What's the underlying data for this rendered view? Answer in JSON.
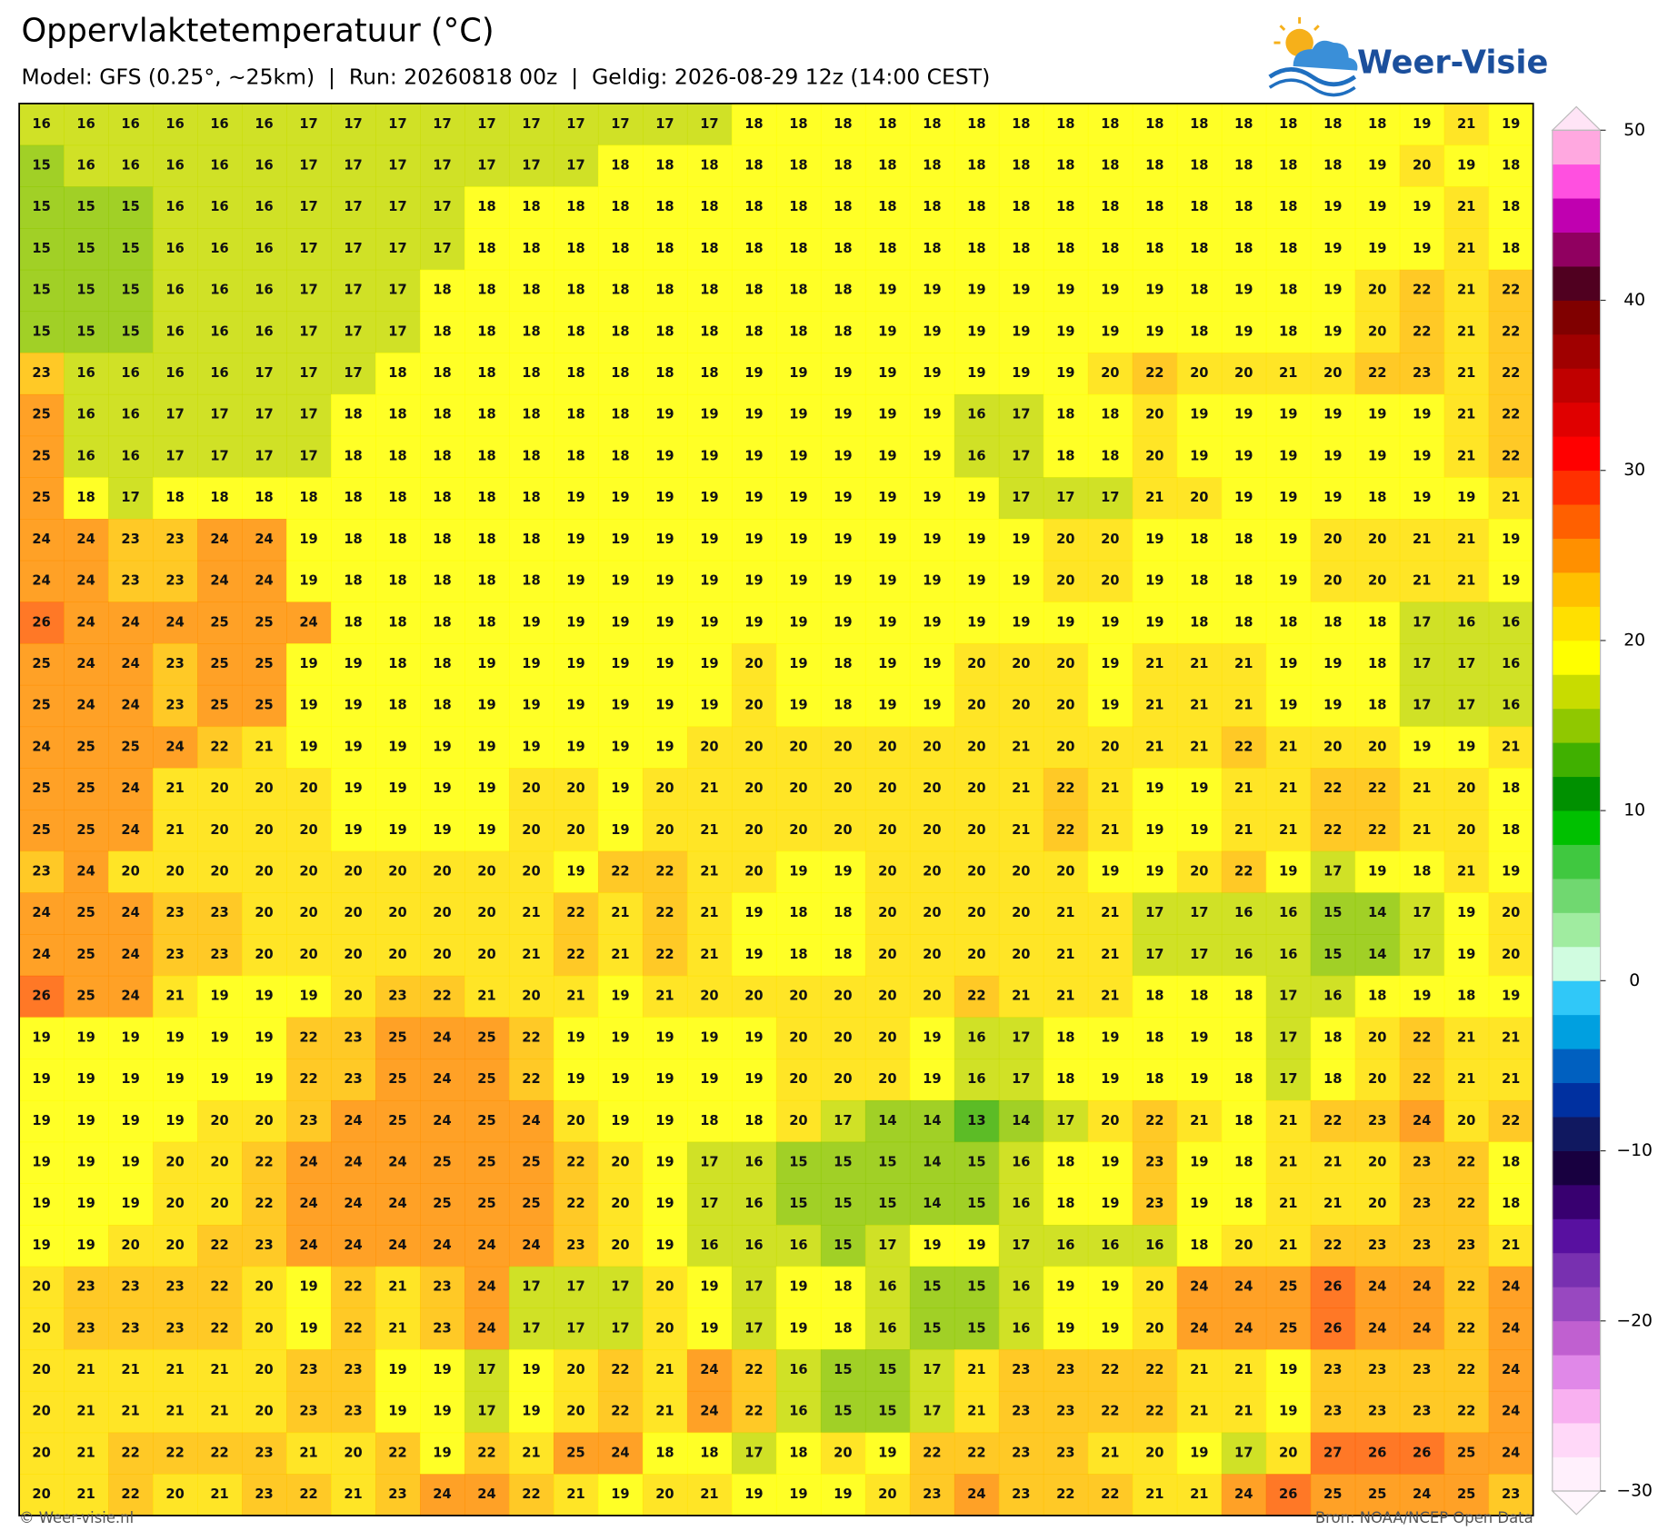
{
  "header": {
    "title": "Oppervlaktetemperatuur (°C)",
    "subtitle": "Model: GFS (0.25°, ~25km)  |  Run: 20260818 00z  |  Geldig: 2026-08-29 12z (14:00 CEST)",
    "logo": "Weer-Visie"
  },
  "chart_data": {
    "type": "heatmap",
    "values": [
      [
        16,
        16,
        16,
        16,
        16,
        16,
        17,
        17,
        17,
        17,
        17,
        17,
        17,
        17,
        17,
        17,
        18,
        18,
        18,
        18,
        18,
        18,
        18,
        18,
        18,
        18,
        18,
        18,
        18,
        18,
        18,
        19,
        21,
        19
      ],
      [
        15,
        16,
        16,
        16,
        16,
        16,
        17,
        17,
        17,
        17,
        17,
        17,
        17,
        18,
        18,
        18,
        18,
        18,
        18,
        18,
        18,
        18,
        18,
        18,
        18,
        18,
        18,
        18,
        18,
        18,
        19,
        20,
        19,
        18
      ],
      [
        15,
        15,
        15,
        16,
        16,
        16,
        17,
        17,
        17,
        17,
        18,
        18,
        18,
        18,
        18,
        18,
        18,
        18,
        18,
        18,
        18,
        18,
        18,
        18,
        18,
        18,
        18,
        18,
        18,
        19,
        19,
        19,
        21,
        18
      ],
      [
        15,
        15,
        15,
        16,
        16,
        16,
        17,
        17,
        17,
        17,
        18,
        18,
        18,
        18,
        18,
        18,
        18,
        18,
        18,
        18,
        18,
        18,
        18,
        18,
        18,
        18,
        18,
        18,
        18,
        19,
        19,
        19,
        21,
        18
      ],
      [
        15,
        15,
        15,
        16,
        16,
        16,
        17,
        17,
        17,
        18,
        18,
        18,
        18,
        18,
        18,
        18,
        18,
        18,
        18,
        19,
        19,
        19,
        19,
        19,
        19,
        19,
        18,
        19,
        18,
        19,
        20,
        22,
        21,
        22
      ],
      [
        15,
        15,
        15,
        16,
        16,
        16,
        17,
        17,
        17,
        18,
        18,
        18,
        18,
        18,
        18,
        18,
        18,
        18,
        18,
        19,
        19,
        19,
        19,
        19,
        19,
        19,
        18,
        19,
        18,
        19,
        20,
        22,
        21,
        22
      ],
      [
        23,
        16,
        16,
        16,
        16,
        17,
        17,
        17,
        18,
        18,
        18,
        18,
        18,
        18,
        18,
        18,
        19,
        19,
        19,
        19,
        19,
        19,
        19,
        19,
        20,
        22,
        20,
        20,
        21,
        20,
        22,
        23,
        21,
        22
      ],
      [
        25,
        16,
        16,
        17,
        17,
        17,
        17,
        18,
        18,
        18,
        18,
        18,
        18,
        18,
        19,
        19,
        19,
        19,
        19,
        19,
        19,
        16,
        17,
        18,
        18,
        20,
        19,
        19,
        19,
        19,
        19,
        19,
        21,
        22
      ],
      [
        25,
        16,
        16,
        17,
        17,
        17,
        17,
        18,
        18,
        18,
        18,
        18,
        18,
        18,
        19,
        19,
        19,
        19,
        19,
        19,
        19,
        16,
        17,
        18,
        18,
        20,
        19,
        19,
        19,
        19,
        19,
        19,
        21,
        22
      ],
      [
        25,
        18,
        17,
        18,
        18,
        18,
        18,
        18,
        18,
        18,
        18,
        18,
        19,
        19,
        19,
        19,
        19,
        19,
        19,
        19,
        19,
        19,
        17,
        17,
        17,
        21,
        20,
        19,
        19,
        19,
        18,
        19,
        19,
        21
      ],
      [
        24,
        24,
        23,
        23,
        24,
        24,
        19,
        18,
        18,
        18,
        18,
        18,
        19,
        19,
        19,
        19,
        19,
        19,
        19,
        19,
        19,
        19,
        19,
        20,
        20,
        19,
        18,
        18,
        19,
        20,
        20,
        21,
        21,
        19
      ],
      [
        24,
        24,
        23,
        23,
        24,
        24,
        19,
        18,
        18,
        18,
        18,
        18,
        19,
        19,
        19,
        19,
        19,
        19,
        19,
        19,
        19,
        19,
        19,
        20,
        20,
        19,
        18,
        18,
        19,
        20,
        20,
        21,
        21,
        19
      ],
      [
        26,
        24,
        24,
        24,
        25,
        25,
        24,
        18,
        18,
        18,
        18,
        19,
        19,
        19,
        19,
        19,
        19,
        19,
        19,
        19,
        19,
        19,
        19,
        19,
        19,
        19,
        18,
        18,
        18,
        18,
        18,
        17,
        16,
        16
      ],
      [
        25,
        24,
        24,
        23,
        25,
        25,
        19,
        19,
        18,
        18,
        19,
        19,
        19,
        19,
        19,
        19,
        20,
        19,
        18,
        19,
        19,
        20,
        20,
        20,
        19,
        21,
        21,
        21,
        19,
        19,
        18,
        17,
        17,
        16
      ],
      [
        25,
        24,
        24,
        23,
        25,
        25,
        19,
        19,
        18,
        18,
        19,
        19,
        19,
        19,
        19,
        19,
        20,
        19,
        18,
        19,
        19,
        20,
        20,
        20,
        19,
        21,
        21,
        21,
        19,
        19,
        18,
        17,
        17,
        16
      ],
      [
        24,
        25,
        25,
        24,
        22,
        21,
        19,
        19,
        19,
        19,
        19,
        19,
        19,
        19,
        19,
        20,
        20,
        20,
        20,
        20,
        20,
        20,
        21,
        20,
        20,
        21,
        21,
        22,
        21,
        20,
        20,
        19,
        19,
        21
      ],
      [
        25,
        25,
        24,
        21,
        20,
        20,
        20,
        19,
        19,
        19,
        19,
        20,
        20,
        19,
        20,
        21,
        20,
        20,
        20,
        20,
        20,
        20,
        21,
        22,
        21,
        19,
        19,
        21,
        21,
        22,
        22,
        21,
        20,
        18
      ],
      [
        25,
        25,
        24,
        21,
        20,
        20,
        20,
        19,
        19,
        19,
        19,
        20,
        20,
        19,
        20,
        21,
        20,
        20,
        20,
        20,
        20,
        20,
        21,
        22,
        21,
        19,
        19,
        21,
        21,
        22,
        22,
        21,
        20,
        18
      ],
      [
        23,
        24,
        20,
        20,
        20,
        20,
        20,
        20,
        20,
        20,
        20,
        20,
        19,
        22,
        22,
        21,
        20,
        19,
        19,
        20,
        20,
        20,
        20,
        20,
        19,
        19,
        20,
        22,
        19,
        17,
        19,
        18,
        21,
        19
      ],
      [
        24,
        25,
        24,
        23,
        23,
        20,
        20,
        20,
        20,
        20,
        20,
        21,
        22,
        21,
        22,
        21,
        19,
        18,
        18,
        20,
        20,
        20,
        20,
        21,
        21,
        17,
        17,
        16,
        16,
        15,
        14,
        17,
        19,
        20
      ],
      [
        24,
        25,
        24,
        23,
        23,
        20,
        20,
        20,
        20,
        20,
        20,
        21,
        22,
        21,
        22,
        21,
        19,
        18,
        18,
        20,
        20,
        20,
        20,
        21,
        21,
        17,
        17,
        16,
        16,
        15,
        14,
        17,
        19,
        20
      ],
      [
        26,
        25,
        24,
        21,
        19,
        19,
        19,
        20,
        23,
        22,
        21,
        20,
        21,
        19,
        21,
        20,
        20,
        20,
        20,
        20,
        20,
        22,
        21,
        21,
        21,
        18,
        18,
        18,
        17,
        16,
        18,
        19,
        18,
        19
      ],
      [
        19,
        19,
        19,
        19,
        19,
        19,
        22,
        23,
        25,
        24,
        25,
        22,
        19,
        19,
        19,
        19,
        19,
        20,
        20,
        20,
        19,
        16,
        17,
        18,
        19,
        18,
        19,
        18,
        17,
        18,
        20,
        22,
        21,
        21
      ],
      [
        19,
        19,
        19,
        19,
        19,
        19,
        22,
        23,
        25,
        24,
        25,
        22,
        19,
        19,
        19,
        19,
        19,
        20,
        20,
        20,
        19,
        16,
        17,
        18,
        19,
        18,
        19,
        18,
        17,
        18,
        20,
        22,
        21,
        21
      ],
      [
        19,
        19,
        19,
        19,
        20,
        20,
        23,
        24,
        25,
        24,
        25,
        24,
        20,
        19,
        19,
        18,
        18,
        20,
        17,
        14,
        14,
        13,
        14,
        17,
        20,
        22,
        21,
        18,
        21,
        22,
        23,
        24,
        20,
        22
      ],
      [
        19,
        19,
        19,
        20,
        20,
        22,
        24,
        24,
        24,
        25,
        25,
        25,
        22,
        20,
        19,
        17,
        16,
        15,
        15,
        15,
        14,
        15,
        16,
        18,
        19,
        23,
        19,
        18,
        21,
        21,
        20,
        23,
        22,
        18
      ],
      [
        19,
        19,
        19,
        20,
        20,
        22,
        24,
        24,
        24,
        25,
        25,
        25,
        22,
        20,
        19,
        17,
        16,
        15,
        15,
        15,
        14,
        15,
        16,
        18,
        19,
        23,
        19,
        18,
        21,
        21,
        20,
        23,
        22,
        18
      ],
      [
        19,
        19,
        20,
        20,
        22,
        23,
        24,
        24,
        24,
        24,
        24,
        24,
        23,
        20,
        19,
        16,
        16,
        16,
        15,
        17,
        19,
        19,
        17,
        16,
        16,
        16,
        18,
        20,
        21,
        22,
        23,
        23,
        23,
        21
      ],
      [
        20,
        23,
        23,
        23,
        22,
        20,
        19,
        22,
        21,
        23,
        24,
        17,
        17,
        17,
        20,
        19,
        17,
        19,
        18,
        16,
        15,
        15,
        16,
        19,
        19,
        20,
        24,
        24,
        25,
        26,
        24,
        24,
        22,
        24
      ],
      [
        20,
        23,
        23,
        23,
        22,
        20,
        19,
        22,
        21,
        23,
        24,
        17,
        17,
        17,
        20,
        19,
        17,
        19,
        18,
        16,
        15,
        15,
        16,
        19,
        19,
        20,
        24,
        24,
        25,
        26,
        24,
        24,
        22,
        24
      ],
      [
        20,
        21,
        21,
        21,
        21,
        20,
        23,
        23,
        19,
        19,
        17,
        19,
        20,
        22,
        21,
        24,
        22,
        16,
        15,
        15,
        17,
        21,
        23,
        23,
        22,
        22,
        21,
        21,
        19,
        23,
        23,
        23,
        22,
        24
      ],
      [
        20,
        21,
        21,
        21,
        21,
        20,
        23,
        23,
        19,
        19,
        17,
        19,
        20,
        22,
        21,
        24,
        22,
        16,
        15,
        15,
        17,
        21,
        23,
        23,
        22,
        22,
        21,
        21,
        19,
        23,
        23,
        23,
        22,
        24
      ],
      [
        20,
        21,
        22,
        22,
        22,
        23,
        21,
        20,
        22,
        19,
        22,
        21,
        25,
        24,
        18,
        18,
        17,
        18,
        20,
        19,
        22,
        22,
        23,
        23,
        21,
        20,
        19,
        17,
        20,
        27,
        26,
        26,
        25,
        24
      ],
      [
        20,
        21,
        22,
        20,
        21,
        23,
        22,
        21,
        23,
        24,
        24,
        22,
        21,
        19,
        20,
        21,
        19,
        19,
        19,
        20,
        23,
        24,
        23,
        22,
        22,
        21,
        21,
        24,
        26,
        25,
        25,
        24,
        25,
        23
      ]
    ],
    "colorbar": {
      "lim": [
        -30,
        50
      ],
      "ticks": [
        {
          "value": -30,
          "label": "−30"
        },
        {
          "value": -20,
          "label": "−20"
        },
        {
          "value": -10,
          "label": "−10"
        },
        0,
        10,
        20,
        30,
        40,
        50
      ],
      "colors": [
        "#fff0fc",
        "#ffd8f8",
        "#f8b0f0",
        "#e088e8",
        "#c060d0",
        "#9848c0",
        "#7830b0",
        "#5810a0",
        "#380070",
        "#180040",
        "#101860",
        "#0030a0",
        "#0060c0",
        "#00a0e0",
        "#30c8f8",
        "#d0fce0",
        "#a0eca0",
        "#70d870",
        "#40c840",
        "#00c000",
        "#009000",
        "#40b000",
        "#90c800",
        "#c8dc00",
        "#ffff00",
        "#ffe000",
        "#ffc000",
        "#ff9000",
        "#ff6000",
        "#ff3000",
        "#ff0000",
        "#e00000",
        "#c00000",
        "#a00000",
        "#800000",
        "#500020",
        "#900060",
        "#c000b0",
        "#ff50e0",
        "#ffa8e0"
      ]
    }
  },
  "footer": {
    "left": "© Weer-visie.nl",
    "right": "Bron: NOAA/NCEP Open Data"
  }
}
